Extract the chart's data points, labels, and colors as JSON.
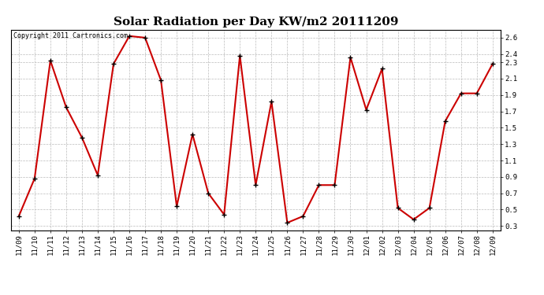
{
  "title": "Solar Radiation per Day KW/m2 20111209",
  "copyright": "Copyright 2011 Cartronics.com",
  "x_labels": [
    "11/09",
    "11/10",
    "11/11",
    "11/12",
    "11/13",
    "11/14",
    "11/15",
    "11/16",
    "11/17",
    "11/18",
    "11/19",
    "11/20",
    "11/21",
    "11/22",
    "11/23",
    "11/24",
    "11/25",
    "11/26",
    "11/27",
    "11/28",
    "11/29",
    "11/30",
    "12/01",
    "12/02",
    "12/03",
    "12/04",
    "12/05",
    "12/06",
    "12/07",
    "12/08",
    "12/09"
  ],
  "values": [
    0.42,
    0.88,
    2.32,
    1.75,
    1.38,
    0.92,
    2.28,
    2.62,
    2.6,
    2.08,
    0.54,
    1.42,
    0.7,
    0.44,
    2.38,
    0.8,
    1.82,
    0.34,
    0.42,
    0.8,
    0.8,
    2.36,
    1.72,
    2.22,
    0.52,
    0.38,
    0.52,
    1.58,
    1.92,
    1.92,
    2.28
  ],
  "line_color": "#cc0000",
  "marker": "+",
  "marker_color": "#000000",
  "bg_color": "#ffffff",
  "plot_bg_color": "#ffffff",
  "grid_color": "#bbbbbb",
  "ylim": [
    0.25,
    2.7
  ],
  "yticks": [
    0.3,
    0.5,
    0.7,
    0.9,
    1.1,
    1.3,
    1.5,
    1.7,
    1.9,
    2.1,
    2.3,
    2.4,
    2.6
  ],
  "ytick_labels": [
    "0.3",
    "0.5",
    "0.7",
    "0.9",
    "1.1",
    "1.3",
    "1.5",
    "1.7",
    "1.9",
    "2.1",
    "2.3",
    "2.4",
    "2.6"
  ],
  "title_fontsize": 11,
  "copyright_fontsize": 6,
  "tick_fontsize": 6.5,
  "line_width": 1.5,
  "marker_size": 4
}
